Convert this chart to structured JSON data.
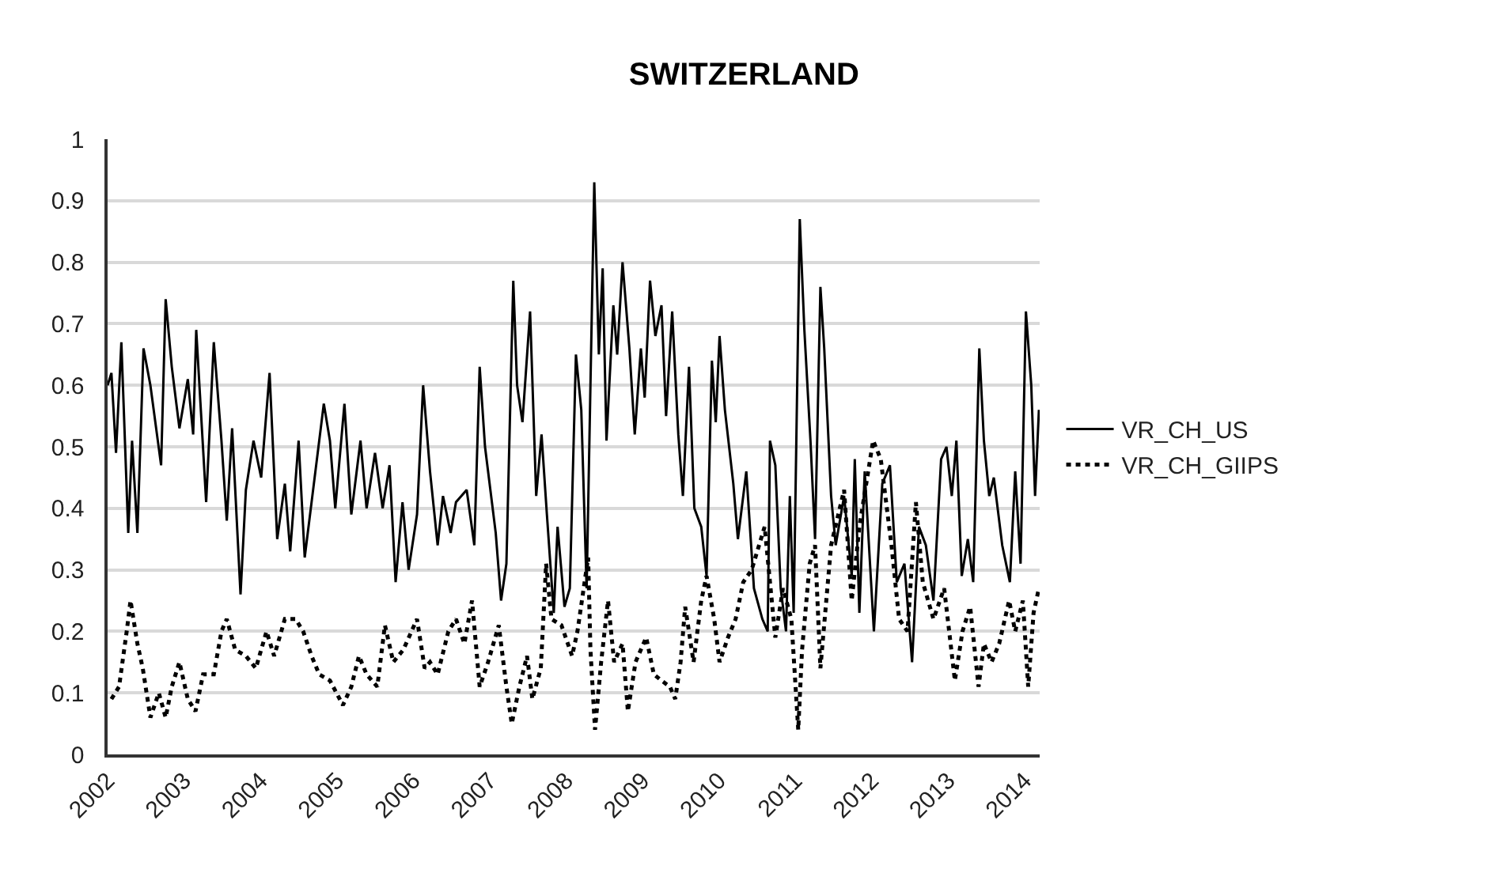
{
  "chart_data": {
    "type": "line",
    "title": "SWITZERLAND",
    "xlim": [
      2002,
      2014.2
    ],
    "xticks": [
      2002,
      2003,
      2004,
      2005,
      2006,
      2007,
      2008,
      2009,
      2010,
      2011,
      2012,
      2013,
      2014
    ],
    "ylim": [
      0,
      1
    ],
    "yticks": [
      0,
      0.1,
      0.2,
      0.3,
      0.4,
      0.5,
      0.6,
      0.7,
      0.8,
      0.9,
      1
    ],
    "grid": "y",
    "legend": "right",
    "marker": "none",
    "series": [
      {
        "name": "VR_CH_US",
        "color": "#000000",
        "line_style": "solid",
        "x": [
          2002.0,
          2002.05,
          2002.11,
          2002.18,
          2002.27,
          2002.32,
          2002.39,
          2002.47,
          2002.56,
          2002.7,
          2002.76,
          2002.84,
          2002.94,
          2003.05,
          2003.12,
          2003.16,
          2003.29,
          2003.39,
          2003.49,
          2003.56,
          2003.63,
          2003.74,
          2003.81,
          2003.91,
          2004.01,
          2004.12,
          2004.22,
          2004.32,
          2004.39,
          2004.5,
          2004.58,
          2004.7,
          2004.83,
          2004.91,
          2004.98,
          2005.1,
          2005.19,
          2005.31,
          2005.39,
          2005.5,
          2005.6,
          2005.69,
          2005.77,
          2005.86,
          2005.94,
          2006.05,
          2006.13,
          2006.22,
          2006.32,
          2006.39,
          2006.49,
          2006.56,
          2006.7,
          2006.8,
          2006.87,
          2006.94,
          2007.08,
          2007.15,
          2007.22,
          2007.31,
          2007.36,
          2007.43,
          2007.53,
          2007.61,
          2007.68,
          2007.75,
          2007.84,
          2007.89,
          2007.98,
          2008.05,
          2008.13,
          2008.2,
          2008.27,
          2008.37,
          2008.43,
          2008.48,
          2008.53,
          2008.62,
          2008.67,
          2008.74,
          2008.83,
          2008.9,
          2008.98,
          2009.03,
          2009.1,
          2009.17,
          2009.25,
          2009.31,
          2009.39,
          2009.47,
          2009.53,
          2009.61,
          2009.68,
          2009.77,
          2009.84,
          2009.91,
          2009.96,
          2010.01,
          2010.08,
          2010.19,
          2010.25,
          2010.36,
          2010.46,
          2010.57,
          2010.64,
          2010.67,
          2010.74,
          2010.81,
          2010.88,
          2010.93,
          2010.98,
          2011.06,
          2011.12,
          2011.2,
          2011.26,
          2011.33,
          2011.38,
          2011.47,
          2011.53,
          2011.64,
          2011.74,
          2011.78,
          2011.84,
          2011.91,
          2012.03,
          2012.14,
          2012.24,
          2012.33,
          2012.43,
          2012.53,
          2012.62,
          2012.71,
          2012.81,
          2012.91,
          2012.98,
          2013.05,
          2013.11,
          2013.18,
          2013.26,
          2013.33,
          2013.41,
          2013.47,
          2013.54,
          2013.6,
          2013.71,
          2013.81,
          2013.88,
          2013.95,
          2014.02,
          2014.09,
          2014.14,
          2014.19
        ],
        "values": [
          0.6,
          0.62,
          0.49,
          0.67,
          0.36,
          0.51,
          0.36,
          0.66,
          0.6,
          0.47,
          0.74,
          0.63,
          0.53,
          0.61,
          0.52,
          0.69,
          0.41,
          0.67,
          0.51,
          0.38,
          0.53,
          0.26,
          0.43,
          0.51,
          0.45,
          0.62,
          0.35,
          0.44,
          0.33,
          0.51,
          0.32,
          0.44,
          0.57,
          0.51,
          0.4,
          0.57,
          0.39,
          0.51,
          0.4,
          0.49,
          0.4,
          0.47,
          0.28,
          0.41,
          0.3,
          0.39,
          0.6,
          0.46,
          0.34,
          0.42,
          0.36,
          0.41,
          0.43,
          0.34,
          0.63,
          0.5,
          0.36,
          0.25,
          0.31,
          0.77,
          0.6,
          0.54,
          0.72,
          0.42,
          0.52,
          0.39,
          0.23,
          0.37,
          0.24,
          0.27,
          0.65,
          0.56,
          0.27,
          0.93,
          0.65,
          0.79,
          0.51,
          0.73,
          0.65,
          0.8,
          0.66,
          0.52,
          0.66,
          0.58,
          0.77,
          0.68,
          0.73,
          0.55,
          0.72,
          0.52,
          0.42,
          0.63,
          0.4,
          0.37,
          0.29,
          0.64,
          0.54,
          0.68,
          0.56,
          0.44,
          0.35,
          0.46,
          0.27,
          0.22,
          0.2,
          0.51,
          0.47,
          0.27,
          0.2,
          0.42,
          0.23,
          0.87,
          0.69,
          0.51,
          0.35,
          0.76,
          0.66,
          0.42,
          0.34,
          0.42,
          0.29,
          0.48,
          0.23,
          0.46,
          0.2,
          0.44,
          0.47,
          0.28,
          0.31,
          0.15,
          0.37,
          0.34,
          0.25,
          0.48,
          0.5,
          0.42,
          0.51,
          0.29,
          0.35,
          0.28,
          0.66,
          0.51,
          0.42,
          0.45,
          0.34,
          0.28,
          0.46,
          0.31,
          0.72,
          0.6,
          0.42,
          0.56
        ]
      },
      {
        "name": "VR_CH_GIIPS",
        "color": "#000000",
        "line_style": "dotted",
        "x": [
          2002.05,
          2002.15,
          2002.25,
          2002.3,
          2002.39,
          2002.46,
          2002.56,
          2002.67,
          2002.76,
          2002.84,
          2002.94,
          2003.05,
          2003.15,
          2003.25,
          2003.39,
          2003.49,
          2003.56,
          2003.67,
          2003.81,
          2003.94,
          2004.08,
          2004.18,
          2004.32,
          2004.46,
          2004.56,
          2004.67,
          2004.77,
          2004.91,
          2005.08,
          2005.19,
          2005.29,
          2005.39,
          2005.53,
          2005.63,
          2005.74,
          2005.87,
          2006.05,
          2006.15,
          2006.22,
          2006.32,
          2006.46,
          2006.56,
          2006.67,
          2006.77,
          2006.87,
          2006.98,
          2007.12,
          2007.22,
          2007.29,
          2007.39,
          2007.49,
          2007.56,
          2007.67,
          2007.74,
          2007.81,
          2007.94,
          2008.08,
          2008.15,
          2008.29,
          2008.32,
          2008.38,
          2008.46,
          2008.55,
          2008.63,
          2008.74,
          2008.81,
          2008.91,
          2009.05,
          2009.15,
          2009.25,
          2009.36,
          2009.43,
          2009.5,
          2009.56,
          2009.67,
          2009.77,
          2009.84,
          2009.94,
          2010.01,
          2010.12,
          2010.22,
          2010.32,
          2010.43,
          2010.6,
          2010.74,
          2010.84,
          2010.95,
          2011.04,
          2011.09,
          2011.19,
          2011.26,
          2011.33,
          2011.47,
          2011.64,
          2011.74,
          2011.84,
          2012.02,
          2012.12,
          2012.26,
          2012.36,
          2012.47,
          2012.58,
          2012.67,
          2012.81,
          2012.95,
          2013.09,
          2013.19,
          2013.29,
          2013.4,
          2013.47,
          2013.57,
          2013.67,
          2013.8,
          2013.88,
          2013.98,
          2014.05,
          2014.12,
          2014.19
        ],
        "values": [
          0.09,
          0.11,
          0.2,
          0.25,
          0.18,
          0.14,
          0.06,
          0.1,
          0.06,
          0.11,
          0.15,
          0.09,
          0.07,
          0.13,
          0.13,
          0.2,
          0.22,
          0.17,
          0.16,
          0.14,
          0.2,
          0.16,
          0.22,
          0.22,
          0.2,
          0.16,
          0.13,
          0.12,
          0.08,
          0.11,
          0.16,
          0.13,
          0.11,
          0.21,
          0.15,
          0.17,
          0.22,
          0.14,
          0.15,
          0.13,
          0.2,
          0.22,
          0.18,
          0.25,
          0.11,
          0.15,
          0.21,
          0.11,
          0.05,
          0.11,
          0.16,
          0.09,
          0.14,
          0.31,
          0.22,
          0.21,
          0.16,
          0.2,
          0.32,
          0.17,
          0.04,
          0.15,
          0.25,
          0.15,
          0.18,
          0.07,
          0.15,
          0.19,
          0.13,
          0.12,
          0.11,
          0.09,
          0.15,
          0.24,
          0.15,
          0.25,
          0.29,
          0.22,
          0.15,
          0.19,
          0.22,
          0.28,
          0.3,
          0.37,
          0.19,
          0.27,
          0.22,
          0.04,
          0.17,
          0.31,
          0.34,
          0.14,
          0.34,
          0.43,
          0.25,
          0.37,
          0.51,
          0.48,
          0.34,
          0.22,
          0.2,
          0.41,
          0.28,
          0.22,
          0.27,
          0.12,
          0.2,
          0.24,
          0.11,
          0.18,
          0.15,
          0.18,
          0.25,
          0.2,
          0.25,
          0.11,
          0.23,
          0.27
        ]
      }
    ]
  }
}
